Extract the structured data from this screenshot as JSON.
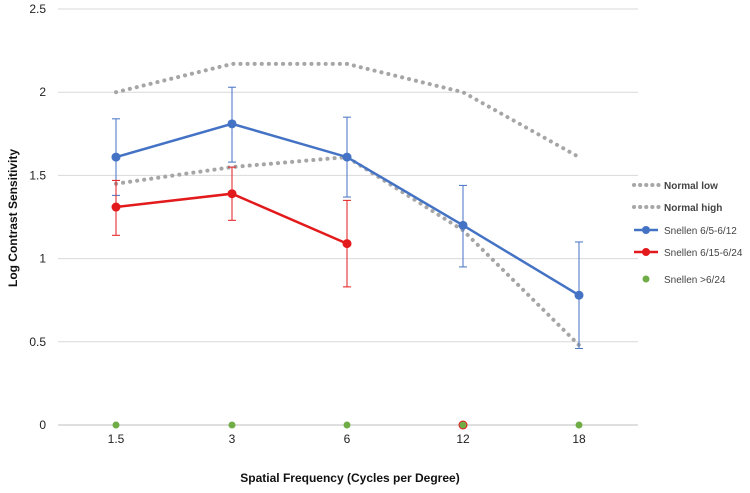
{
  "chart_data": {
    "type": "line",
    "title": "",
    "xlabel": "Spatial Frequency (Cycles per Degree)",
    "ylabel": "Log Contrast Sensitivity",
    "categories": [
      "1.5",
      "3",
      "6",
      "12",
      "18"
    ],
    "ylim": [
      0,
      2.5
    ],
    "yticks": [
      "0",
      "0.5",
      "1",
      "1.5",
      "2",
      "2.5"
    ],
    "grid": true,
    "legend_position": "right",
    "series": [
      {
        "name": "Normal low",
        "style": "dotted",
        "color": "#a6a6a6",
        "values": [
          1.45,
          1.55,
          1.61,
          1.17,
          0.48
        ]
      },
      {
        "name": "Normal high",
        "style": "dotted",
        "color": "#a6a6a6",
        "values": [
          2.0,
          2.17,
          2.17,
          2.0,
          1.61
        ]
      },
      {
        "name": "Snellen 6/5-6/12",
        "style": "solid",
        "color": "#4472c4",
        "values": [
          1.61,
          1.81,
          1.61,
          1.2,
          0.78
        ],
        "error_low": [
          1.38,
          1.58,
          1.37,
          0.95,
          0.46
        ],
        "error_high": [
          1.84,
          2.03,
          1.85,
          1.44,
          1.1
        ]
      },
      {
        "name": "Snellen 6/15-6/24",
        "style": "solid",
        "color": "#e31a1c",
        "values": [
          1.31,
          1.39,
          1.09,
          null,
          null
        ],
        "error_low": [
          1.14,
          1.23,
          0.83,
          null,
          null
        ],
        "error_high": [
          1.47,
          1.55,
          1.35,
          null,
          null
        ],
        "extra_points": [
          {
            "category": "12",
            "value": 0
          }
        ]
      },
      {
        "name": "Snellen >6/24",
        "style": "markers",
        "color": "#70ad47",
        "values": [
          0,
          0,
          0,
          0,
          0
        ]
      }
    ]
  }
}
